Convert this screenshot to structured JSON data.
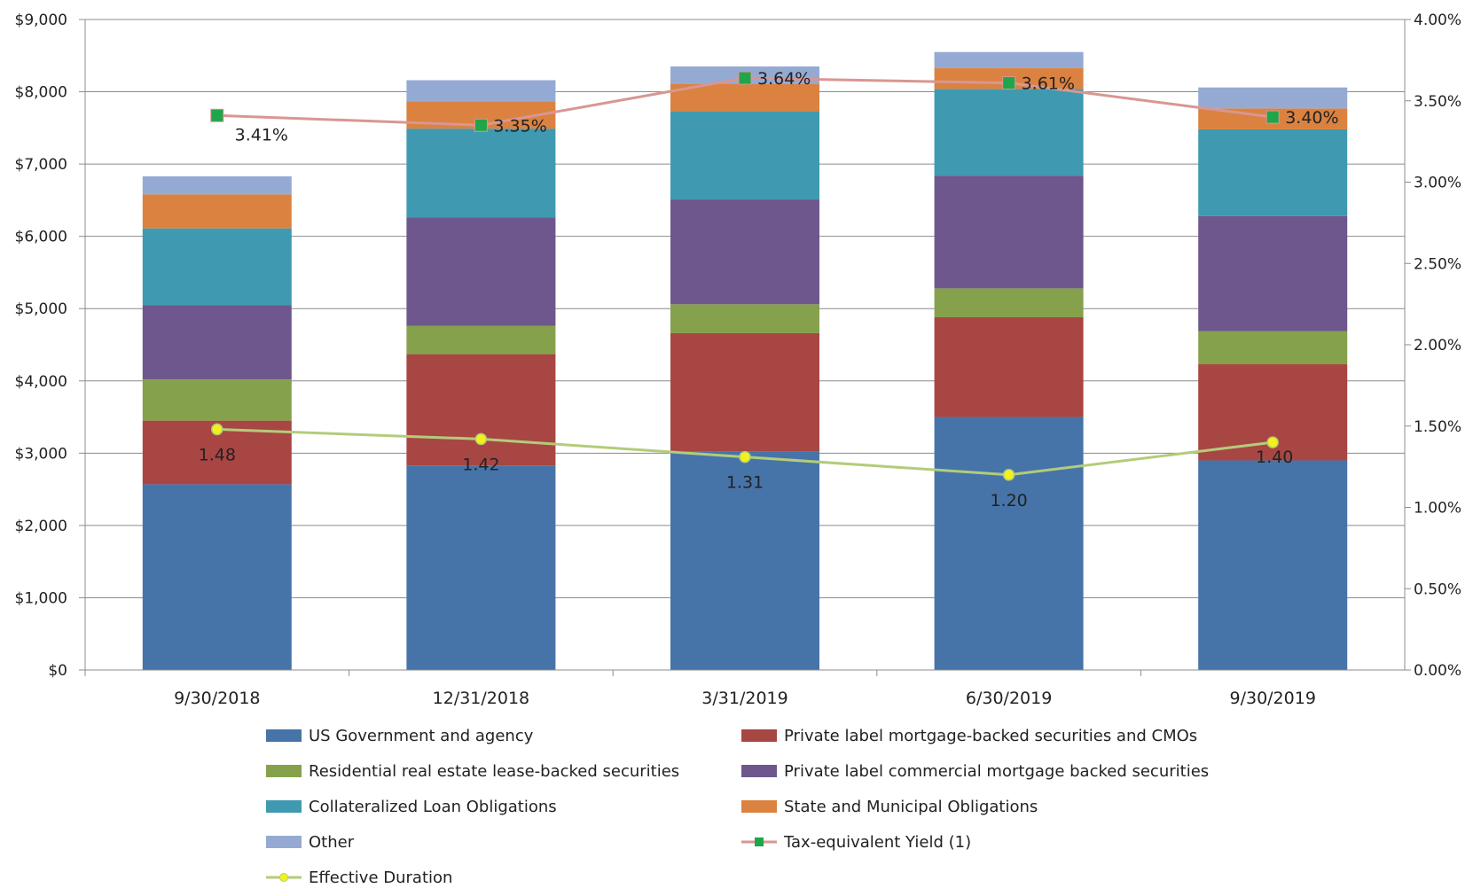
{
  "chart_data": {
    "type": "bar",
    "stacked": true,
    "categories": [
      "9/30/2018",
      "12/31/2018",
      "3/31/2019",
      "6/30/2019",
      "9/30/2019"
    ],
    "y_axis": {
      "ticks": [
        "$0",
        "$1,000",
        "$2,000",
        "$3,000",
        "$4,000",
        "$5,000",
        "$6,000",
        "$7,000",
        "$8,000",
        "$9,000"
      ],
      "ylim": [
        0,
        9000
      ]
    },
    "y2_axis": {
      "ticks": [
        "0.00%",
        "0.50%",
        "1.00%",
        "1.50%",
        "2.00%",
        "2.50%",
        "3.00%",
        "3.50%",
        "4.00%"
      ],
      "ylim": [
        0,
        4.0
      ]
    },
    "grid": true,
    "legend_placement": "bottom",
    "bar_series": [
      {
        "name": "US Government and agency",
        "color": "#4674A8",
        "values": [
          2570,
          2830,
          3020,
          3500,
          2900
        ]
      },
      {
        "name": "Private label mortgage-backed securities and CMOs",
        "color": "#A84643",
        "values": [
          880,
          1540,
          1640,
          1380,
          1330
        ]
      },
      {
        "name": "Residential real estate lease-backed securities",
        "color": "#86A14B",
        "values": [
          570,
          390,
          400,
          400,
          460
        ]
      },
      {
        "name": "Private label commercial mortgage backed securities",
        "color": "#6E578C",
        "values": [
          1030,
          1500,
          1450,
          1560,
          1590
        ]
      },
      {
        "name": "Collateralized Loan Obligations",
        "color": "#3F99B0",
        "values": [
          1060,
          1230,
          1220,
          1200,
          1200
        ]
      },
      {
        "name": "State and Municipal Obligations",
        "color": "#DB8240",
        "values": [
          470,
          380,
          380,
          290,
          290
        ]
      },
      {
        "name": "Other",
        "color": "#95AAD3",
        "values": [
          250,
          290,
          240,
          220,
          290
        ]
      }
    ],
    "line_series": [
      {
        "name": "Tax-equivalent Yield (1)",
        "axis": "right",
        "line_color": "#D99692",
        "marker_color": "#1FA64A",
        "values": [
          3.41,
          3.35,
          3.64,
          3.61,
          3.4
        ],
        "labels": [
          "3.41%",
          "3.35%",
          "3.64%",
          "3.61%",
          "3.40%"
        ]
      },
      {
        "name": "Effective Duration",
        "axis": "right",
        "line_color": "#B3CC7A",
        "marker_color": "#F2F21A",
        "values": [
          1.48,
          1.42,
          1.31,
          1.2,
          1.4
        ],
        "labels": [
          "1.48",
          "1.42",
          "1.31",
          "1.20",
          "1.40"
        ]
      }
    ],
    "legend": [
      {
        "label": "US Government and agency",
        "kind": "box",
        "color": "#4674A8"
      },
      {
        "label": "Private label mortgage-backed securities and CMOs",
        "kind": "box",
        "color": "#A84643"
      },
      {
        "label": "Residential real estate lease-backed securities",
        "kind": "box",
        "color": "#86A14B"
      },
      {
        "label": "Private label commercial mortgage backed securities",
        "kind": "box",
        "color": "#6E578C"
      },
      {
        "label": "Collateralized Loan Obligations",
        "kind": "box",
        "color": "#3F99B0"
      },
      {
        "label": "State and Municipal Obligations",
        "kind": "box",
        "color": "#DB8240"
      },
      {
        "label": "Other",
        "kind": "box",
        "color": "#95AAD3"
      },
      {
        "label": "Tax-equivalent Yield (1)",
        "kind": "line",
        "color": "#D99692",
        "marker": "#1FA64A"
      },
      {
        "label": "Effective Duration",
        "kind": "line",
        "color": "#B3CC7A",
        "marker": "#F2F21A"
      }
    ]
  }
}
